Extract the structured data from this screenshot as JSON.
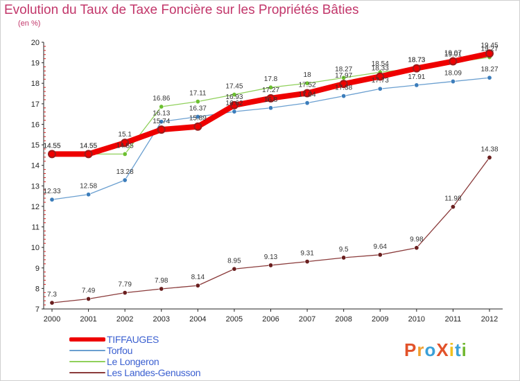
{
  "header": {
    "title": "Evolution du Taux de Taxe Foncière sur les Propriétés Bâties",
    "unit": "(en %)"
  },
  "logo": {
    "text": "ProXiti",
    "colors": [
      "#e2522a",
      "#f0a030",
      "#3aa0d8",
      "#e2522a",
      "#f0c020",
      "#3aa0d8",
      "#72b832"
    ]
  },
  "chart_data": {
    "type": "line",
    "title": "Evolution du Taux de Taxe Foncière sur les Propriétés Bâties",
    "ylabel": "(en %)",
    "xlabel": "",
    "x": [
      "2000",
      "2001",
      "2002",
      "2003",
      "2004",
      "2005",
      "2006",
      "2007",
      "2008",
      "2009",
      "2010",
      "2011",
      "2012"
    ],
    "ylim": [
      7,
      20
    ],
    "yticks": [
      "7",
      "8",
      "9",
      "10",
      "11",
      "12",
      "13",
      "14",
      "15",
      "16",
      "17",
      "18",
      "19",
      "20"
    ],
    "grid": false,
    "legend_position": "bottom-left",
    "series": [
      {
        "name": "TIFFAUGES",
        "color": "#ee0000",
        "marker_color": "#9a1c1c",
        "values": [
          14.55,
          14.55,
          15.1,
          15.74,
          15.89,
          16.93,
          17.27,
          17.52,
          17.97,
          18.33,
          18.73,
          19.07,
          19.45
        ],
        "labels": [
          "14.55",
          "14.55",
          "15.1",
          "15.74",
          "15.89",
          "16.93",
          "17.27",
          "17.52",
          "17.97",
          "18.33",
          "18.73",
          "19.07",
          "19.45"
        ]
      },
      {
        "name": "Torfou",
        "color": "#6a9fd0",
        "marker_color": "#3c7dbb",
        "values": [
          12.33,
          12.58,
          13.28,
          16.13,
          16.37,
          16.62,
          16.8,
          17.04,
          17.38,
          17.73,
          17.91,
          18.09,
          18.27
        ],
        "labels": [
          "12.33",
          "12.58",
          "13.28",
          "16.13",
          "16.37",
          "16.62",
          "16.8",
          "17.04",
          "17.38",
          "17.73",
          "17.91",
          "18.09",
          "18.27"
        ]
      },
      {
        "name": "Le Longeron",
        "color": "#8fd05a",
        "marker_color": "#6cc030",
        "values": [
          14.55,
          14.55,
          14.55,
          16.86,
          17.11,
          17.45,
          17.8,
          18.0,
          18.27,
          18.54,
          18.73,
          19.01,
          19.27
        ],
        "labels": [
          "14.55",
          "14.55",
          "14.55",
          "16.86",
          "17.11",
          "17.45",
          "17.8",
          "18",
          "18.27",
          "18.54",
          "18.73",
          "19.01",
          "19.27"
        ]
      },
      {
        "name": "Les Landes-Genusson",
        "color": "#8a3a3a",
        "marker_color": "#6a1f1f",
        "values": [
          7.3,
          7.49,
          7.79,
          7.98,
          8.14,
          8.95,
          9.13,
          9.31,
          9.5,
          9.64,
          9.98,
          11.98,
          14.38
        ],
        "labels": [
          "7.3",
          "7.49",
          "7.79",
          "7.98",
          "8.14",
          "8.95",
          "9.13",
          "9.31",
          "9.5",
          "9.64",
          "9.98",
          "11.98",
          "14.38"
        ]
      }
    ]
  }
}
